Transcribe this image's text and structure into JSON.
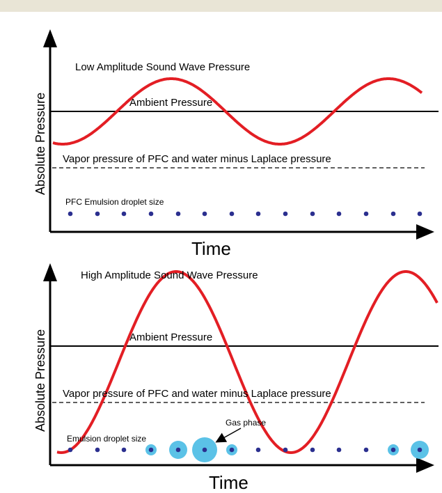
{
  "colors": {
    "top_band": "#e9e5d6",
    "wave": "#e31e24",
    "droplet_core": "#2b2f8f",
    "gas_bubble": "#5bc2e7",
    "axis": "#000000"
  },
  "panels": [
    {
      "wave_label": "Low Amplitude Sound Wave Pressure",
      "ambient_label": "Ambient Pressure",
      "vapor_label": "Vapor pressure of PFC and water minus Laplace pressure",
      "droplet_label": "PFC Emulsion droplet size",
      "y_axis_label": "Absolute Pressure",
      "x_axis_label": "Time",
      "droplet_states": [
        "dot",
        "dot",
        "dot",
        "dot",
        "dot",
        "dot",
        "dot",
        "dot",
        "dot",
        "dot",
        "dot",
        "dot",
        "dot",
        "dot"
      ]
    },
    {
      "wave_label": "High Amplitude Sound Wave Pressure",
      "ambient_label": "Ambient Pressure",
      "vapor_label": "Vapor pressure of PFC and water minus Laplace pressure",
      "droplet_label": "Emulsion droplet size",
      "gas_label": "Gas phase",
      "y_axis_label": "Absolute Pressure",
      "x_axis_label": "Time",
      "droplet_states": [
        "dot",
        "dot",
        "dot",
        "small-bubble",
        "medium-bubble",
        "large-bubble",
        "small-bubble",
        "dot",
        "dot",
        "dot",
        "dot",
        "dot",
        "small-bubble",
        "medium-bubble"
      ]
    }
  ]
}
